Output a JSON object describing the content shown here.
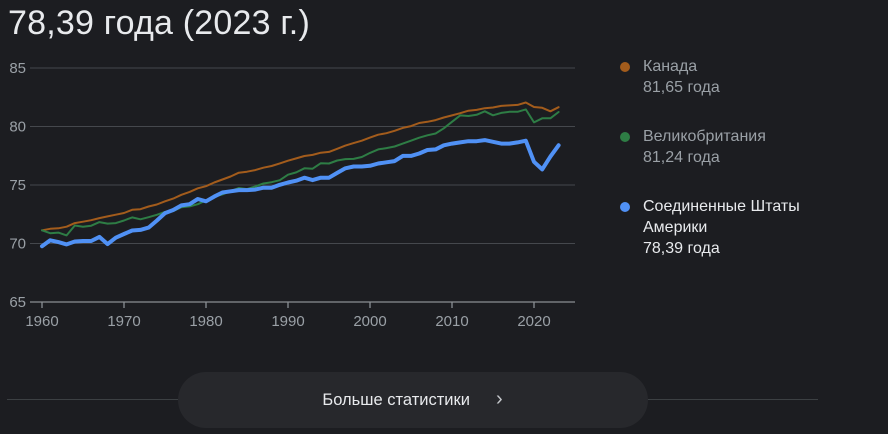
{
  "title": "78,39 года (2023 г.)",
  "colors": {
    "background": "#1c1d21",
    "grid": "#45484d",
    "axis": "#8a8f94",
    "axis_label": "#9aa0a6",
    "text_primary": "#e8eaed",
    "text_secondary": "#9aa0a6",
    "divider": "#3c4043",
    "button_bg": "#27282c",
    "canada": "#a35c1c",
    "uk": "#2e7d45",
    "usa": "#5091f5"
  },
  "legend": {
    "items": [
      {
        "label": "Канада",
        "value": "81,65 года",
        "color": "#a35c1c",
        "selected": false
      },
      {
        "label": "Великобритания",
        "value": "81,24 года",
        "color": "#2e7d45",
        "selected": false
      },
      {
        "label": "Соединенные Штаты Америки",
        "value": "78,39 года",
        "color": "#5091f5",
        "selected": true
      }
    ]
  },
  "footer": {
    "more_stats_label": "Больше статистики",
    "chevron": "›"
  },
  "chart_data": {
    "type": "line",
    "title": "78,39 года (2023 г.)",
    "ylabel": "",
    "xlabel": "",
    "ylim": [
      65,
      85
    ],
    "yticks": [
      65,
      70,
      75,
      80,
      85
    ],
    "xticks": [
      1960,
      1970,
      1980,
      1990,
      2000,
      2010,
      2020
    ],
    "grid": "horizontal",
    "legend_position": "right",
    "x": [
      1960,
      1961,
      1962,
      1963,
      1964,
      1965,
      1966,
      1967,
      1968,
      1969,
      1970,
      1971,
      1972,
      1973,
      1974,
      1975,
      1976,
      1977,
      1978,
      1979,
      1980,
      1981,
      1982,
      1983,
      1984,
      1985,
      1986,
      1987,
      1988,
      1989,
      1990,
      1991,
      1992,
      1993,
      1994,
      1995,
      1996,
      1997,
      1998,
      1999,
      2000,
      2001,
      2002,
      2003,
      2004,
      2005,
      2006,
      2007,
      2008,
      2009,
      2010,
      2011,
      2012,
      2013,
      2014,
      2015,
      2016,
      2017,
      2018,
      2019,
      2020,
      2021,
      2022,
      2023
    ],
    "series": [
      {
        "name": "Канада",
        "color": "#a35c1c",
        "final_label": "81,65 года",
        "line_width": 2,
        "values": [
          71.13,
          71.26,
          71.3,
          71.44,
          71.74,
          71.86,
          71.99,
          72.17,
          72.32,
          72.46,
          72.61,
          72.88,
          72.93,
          73.16,
          73.33,
          73.61,
          73.84,
          74.16,
          74.41,
          74.72,
          74.9,
          75.21,
          75.47,
          75.73,
          76.05,
          76.14,
          76.27,
          76.48,
          76.62,
          76.85,
          77.08,
          77.27,
          77.48,
          77.57,
          77.76,
          77.83,
          78.09,
          78.37,
          78.58,
          78.79,
          79.05,
          79.3,
          79.43,
          79.63,
          79.88,
          80.03,
          80.3,
          80.4,
          80.55,
          80.77,
          80.95,
          81.14,
          81.35,
          81.42,
          81.56,
          81.62,
          81.76,
          81.8,
          81.85,
          82.05,
          81.67,
          81.6,
          81.3,
          81.65
        ]
      },
      {
        "name": "Великобритания",
        "color": "#2e7d45",
        "final_label": "81,24 года",
        "line_width": 2,
        "values": [
          71.13,
          70.88,
          70.93,
          70.69,
          71.54,
          71.43,
          71.52,
          71.83,
          71.7,
          71.74,
          71.97,
          72.23,
          72.07,
          72.25,
          72.45,
          72.69,
          72.77,
          73.1,
          73.17,
          73.36,
          73.68,
          74.01,
          74.2,
          74.48,
          74.74,
          74.65,
          74.87,
          75.13,
          75.24,
          75.41,
          75.88,
          76.08,
          76.43,
          76.39,
          76.86,
          76.84,
          77.09,
          77.21,
          77.23,
          77.39,
          77.74,
          78.04,
          78.15,
          78.29,
          78.54,
          78.79,
          79.04,
          79.25,
          79.4,
          79.85,
          80.4,
          80.95,
          80.9,
          81.0,
          81.3,
          80.96,
          81.16,
          81.26,
          81.26,
          81.46,
          80.35,
          80.7,
          80.7,
          81.24
        ]
      },
      {
        "name": "Соединенные Штаты Америки",
        "color": "#5091f5",
        "final_label": "78,39 года",
        "line_width": 4,
        "highlighted": true,
        "values": [
          69.77,
          70.27,
          70.12,
          69.92,
          70.17,
          70.21,
          70.21,
          70.56,
          69.95,
          70.5,
          70.81,
          71.11,
          71.16,
          71.36,
          71.96,
          72.6,
          72.86,
          73.26,
          73.36,
          73.8,
          73.61,
          74.01,
          74.36,
          74.46,
          74.56,
          74.56,
          74.61,
          74.77,
          74.76,
          75.02,
          75.21,
          75.37,
          75.62,
          75.42,
          75.62,
          75.62,
          76.03,
          76.43,
          76.58,
          76.58,
          76.64,
          76.84,
          76.94,
          77.04,
          77.49,
          77.49,
          77.69,
          77.99,
          78.04,
          78.39,
          78.54,
          78.64,
          78.74,
          78.74,
          78.84,
          78.69,
          78.54,
          78.54,
          78.64,
          78.79,
          76.98,
          76.33,
          77.43,
          78.39
        ]
      }
    ]
  }
}
